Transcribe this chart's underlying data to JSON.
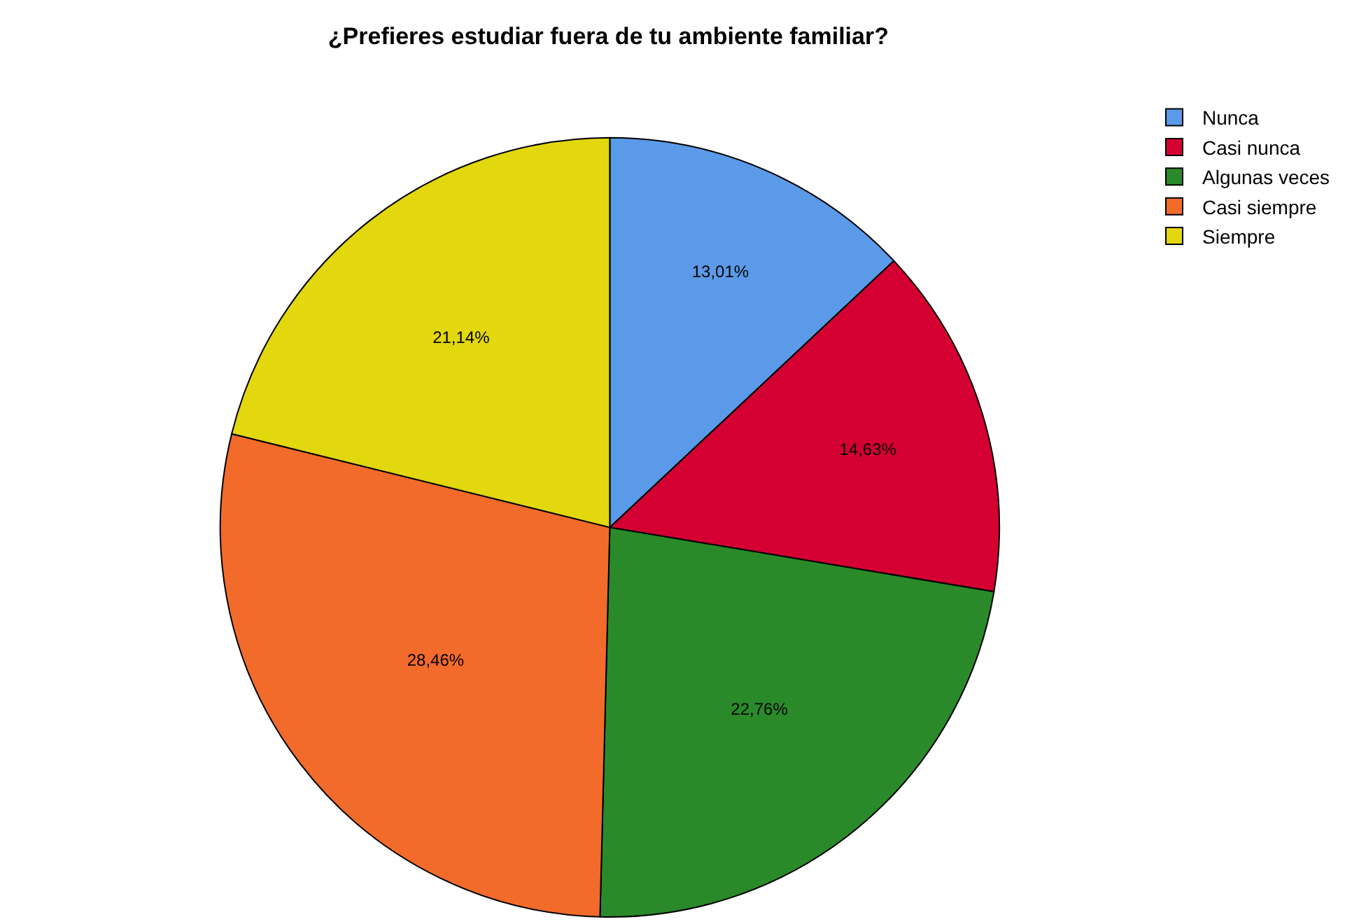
{
  "chart_data": {
    "type": "pie",
    "title": "¿Prefieres estudiar fuera de tu ambiente familiar?",
    "categories": [
      "Nunca",
      "Casi nunca",
      "Algunas veces",
      "Casi siempre",
      "Siempre"
    ],
    "values": [
      13.01,
      14.63,
      22.76,
      28.46,
      21.14
    ],
    "colors": [
      "#5b9ae8",
      "#d40032",
      "#2a8a2a",
      "#f26b2a",
      "#e3d70e"
    ],
    "value_labels": [
      "13,01%",
      "14,63%",
      "22,76%",
      "28,46%",
      "21,14%"
    ],
    "legend": "top right"
  }
}
